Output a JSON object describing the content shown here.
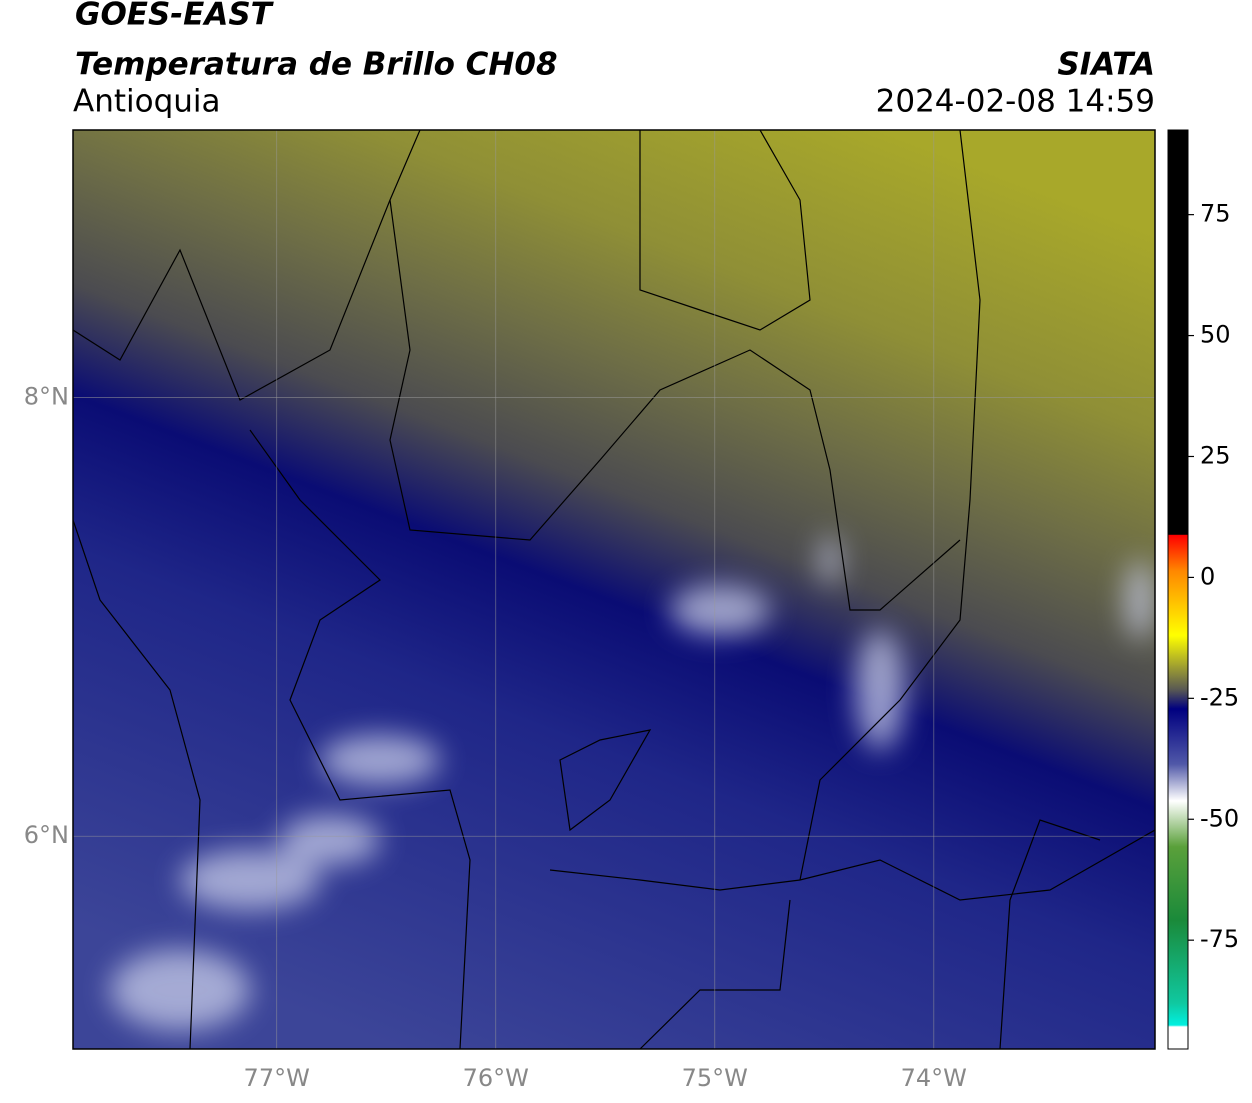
{
  "header": {
    "satellite": "GOES-EAST",
    "product": "Temperatura de Brillo CH08",
    "region": "Antioquia",
    "source": "SIATA",
    "datetime": "2024-02-08 14:59"
  },
  "map": {
    "xlim": [
      -77.93,
      -72.99
    ],
    "ylim": [
      5.03,
      9.22
    ],
    "xticks": [
      {
        "value": -77,
        "label": "77°W"
      },
      {
        "value": -76,
        "label": "76°W"
      },
      {
        "value": -75,
        "label": "75°W"
      },
      {
        "value": -74,
        "label": "74°W"
      }
    ],
    "yticks": [
      {
        "value": 6,
        "label": "6°N"
      },
      {
        "value": 8,
        "label": "8°N"
      }
    ],
    "grid": true
  },
  "colorbar": {
    "lim": [
      -97.5,
      92.5
    ],
    "ticks": [
      75,
      50,
      25,
      0,
      -25,
      -50,
      -75
    ]
  }
}
